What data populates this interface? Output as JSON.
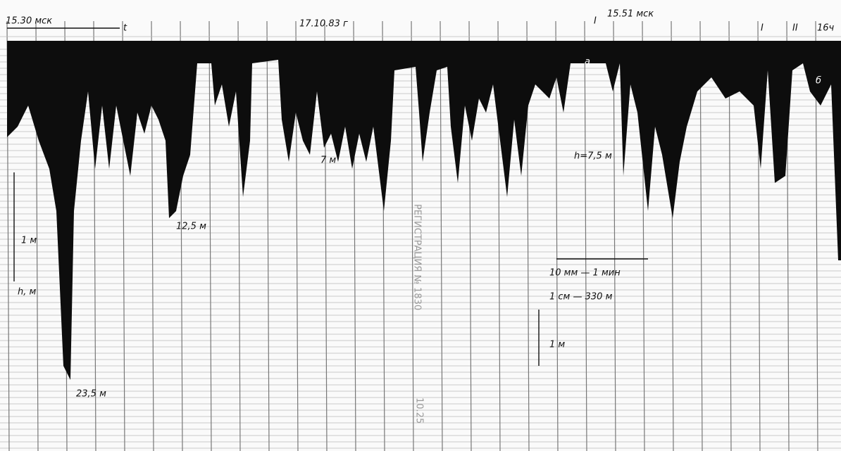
{
  "header": {
    "start_time": "15.30 мск",
    "axis_t": "t",
    "date": "17.10.83 г",
    "marker_left": "I",
    "mark_time": "15.51 мск",
    "marker_right_1": "I",
    "marker_right_2": "II",
    "end_time": "16ч"
  },
  "labels": {
    "a": "а",
    "b": "б",
    "depth_7": "7 м",
    "depth_75": "h=7,5 м",
    "depth_125": "12,5 м",
    "depth_235": "23,5 м",
    "scale_1m_left": "1 м",
    "axis_h": "h, м",
    "time_scale": "10 мм — 1 мин",
    "distance_scale": "1 см — 330 м",
    "scale_1m_right": "1 м",
    "print_1": "РЕГИСТРАЦИЯ № 1830",
    "print_2": "10.25"
  }
}
